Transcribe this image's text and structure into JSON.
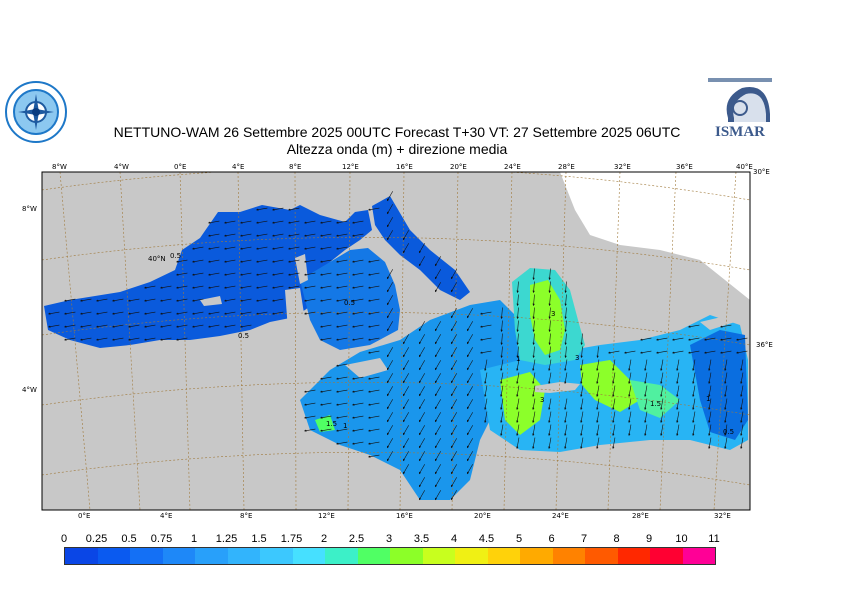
{
  "header": {
    "title_line1": "NETTUNO-WAM  26 Settembre 2025 00UTC Forecast T+30 VT: 27 Settembre 2025 06UTC",
    "title_line2": "Altezza onda (m) + direzione media",
    "logo_right_text": "ISMAR"
  },
  "map": {
    "top_lon_labels": [
      "8°W",
      "4°W",
      "0°E",
      "4°E",
      "8°E",
      "12°E",
      "16°E",
      "20°E",
      "24°E",
      "28°E",
      "32°E",
      "36°E",
      "40°E"
    ],
    "bottom_lon_labels": [
      "0°E",
      "4°E",
      "8°E",
      "12°E",
      "16°E",
      "20°E",
      "24°E",
      "28°E",
      "32°E"
    ],
    "left_lat_labels": [
      "8°W",
      "4°W"
    ],
    "right_lat_labels": [
      "30°E",
      "36°E"
    ],
    "inner_lat_label": "40°N",
    "contour_labels": [
      "0.5",
      "0.5",
      "0.5",
      "1",
      "1.5",
      "1",
      "3",
      "3",
      "3",
      "1.5",
      "1",
      "0.5"
    ],
    "colors": {
      "sea_low": "#0a5adc",
      "sea_mid": "#1aa8f0",
      "sea_high": "#8cff2a",
      "land": "#c8c8c8",
      "graticule": "#a07a3c"
    }
  },
  "colorbar": {
    "labels": [
      "0",
      "0.25",
      "0.5",
      "0.75",
      "1",
      "1.25",
      "1.5",
      "1.75",
      "2",
      "2.5",
      "3",
      "3.5",
      "4",
      "4.5",
      "5",
      "6",
      "7",
      "8",
      "9",
      "10",
      "11"
    ],
    "colors": [
      "#0a46e6",
      "#0a5af0",
      "#1470f5",
      "#1e88f8",
      "#28a0fa",
      "#32b4fc",
      "#3cc8fe",
      "#46e0ff",
      "#3cf0c8",
      "#50ff64",
      "#8cff28",
      "#c8ff1e",
      "#f0f014",
      "#ffd20a",
      "#ffaa00",
      "#ff8200",
      "#ff5a00",
      "#ff2800",
      "#ff0032",
      "#ff0096"
    ]
  }
}
